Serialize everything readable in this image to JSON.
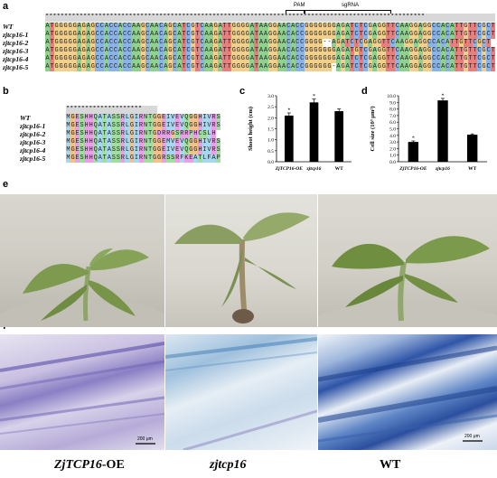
{
  "panels": {
    "a": "a",
    "b": "b",
    "c": "c",
    "d": "d",
    "e": "e",
    "f": "f"
  },
  "panel_a": {
    "pam_label": "PAM",
    "sgrna_label": "sgRNA",
    "names": [
      "WT",
      "zjtcp16-1",
      "zjtcp16-2",
      "zjtcp16-3",
      "zjtcp16-4",
      "zjtcp16-5"
    ],
    "sequences": [
      "ATGGGGGAGAGCCACCACCAAGCAACAGCATCGTCAAGATTGGGGATAAGGAACACCGGGGGGGAGATCTCGAGGTTCAAGGAGGCCACATTGTTCGCT",
      "ATGGGGGAGAGCCACCACCAAGCAACAGCATCGTCAAGATTGGGGATAAGGAACACCGGGGGGGAGATCTCGAGGTTCAAGGAGGCCACATTGTTCGCT",
      "ATGGGGGAGAGCCACCACCAAGCAACAGCATCGTCAAGATTGGGGATAAGGAACACCGGGG--AGATCTCGAGGTTCAAGGAGGCCACATTGTTCGCT",
      "ATGGGGGAGAGCCACCACCAAGCAACAGCATCGTCAAGATTGGGGATAAGGAACACCGGGGGGGAGATGTCGAGGTTCAAGGAGGCCACATTGTTCGCT",
      "ATGGGGGAGAGCCACCACCAAGCAACAGCATCGTCAAGATTGGGGATAAGGAACACCGGGGGGGAGATCTCGAGGTTCAAGGAGGCCACATTGTTCGCT",
      "ATGGGGGAGAGCCACCACCAAGCAACAGCATCGTCAAGATTGGGGATAAGGAACACCGGGGGG-AGATCTCGAGGTTCAAGGAGGCCACATTGTTCGCT"
    ],
    "star_row": "****************************************************************************************************"
  },
  "panel_b": {
    "names": [
      "WT",
      "zjtcp16-1",
      "zjtcp16-2",
      "zjtcp16-3",
      "zjtcp16-4",
      "zjtcp16-5"
    ],
    "sequences": [
      "MGESHHQATASSRLGIRNTGGEIVEVQGGHIVRS",
      "MGESHHQATASSRLGIRNTGGEIVEVQGGHIVRS",
      "MGESHHQATASSRLGIRNTGDRRGSRRPHCSLH",
      "MGESHHQATASSRLGIRNTGGEMVEVQGGHIVRS",
      "MGESHHQATASSRLGIRNTGGEIVEVQGGHIVRS",
      "MGESHHQATASSRLGIRNTGGRSSRFKEATLFAP"
    ],
    "star_row": "********************"
  },
  "chart_data": [
    {
      "type": "bar",
      "categories": [
        "ZjTCP16-OE",
        "zjtcp16",
        "WT"
      ],
      "values": [
        2.1,
        2.7,
        2.3
      ],
      "errors": [
        0.12,
        0.15,
        0.1
      ],
      "significance": [
        "*",
        "*",
        ""
      ],
      "ylabel": "Shoot height (cm)",
      "ylim": [
        0,
        3.0
      ],
      "yticks": [
        "0.0",
        "0.5",
        "1.0",
        "1.5",
        "2.0",
        "2.5",
        "3.0"
      ],
      "bar_color": "#000000"
    },
    {
      "type": "bar",
      "categories": [
        "ZjTCP16-OE",
        "zjtcp16",
        "WT"
      ],
      "values": [
        3.0,
        9.3,
        4.1
      ],
      "errors": [
        0.15,
        0.3,
        0.12
      ],
      "significance": [
        "*",
        "*",
        ""
      ],
      "ylabel": "Cell size (10³ μm²)",
      "ylim": [
        0,
        10
      ],
      "yticks": [
        "0.0",
        "1.0",
        "2.0",
        "3.0",
        "4.0",
        "5.0",
        "6.0",
        "7.0",
        "8.0",
        "9.0",
        "10.0"
      ],
      "bar_color": "#000000"
    }
  ],
  "bottom_labels": [
    "ZjTCP16-OE",
    "zjtcp16",
    "WT"
  ],
  "scalebar_labels": [
    "200 μm",
    "200 μm"
  ],
  "colors": {
    "A": "#8fd18f",
    "T": "#e87f7f",
    "G": "#f2cf8a",
    "C": "#8ab4e8",
    "aa_hydro": "#a8d8f0",
    "aa_polar": "#9fe09f",
    "aa_charged": "#e9a0e9",
    "aa_gly": "#f3c28a"
  }
}
